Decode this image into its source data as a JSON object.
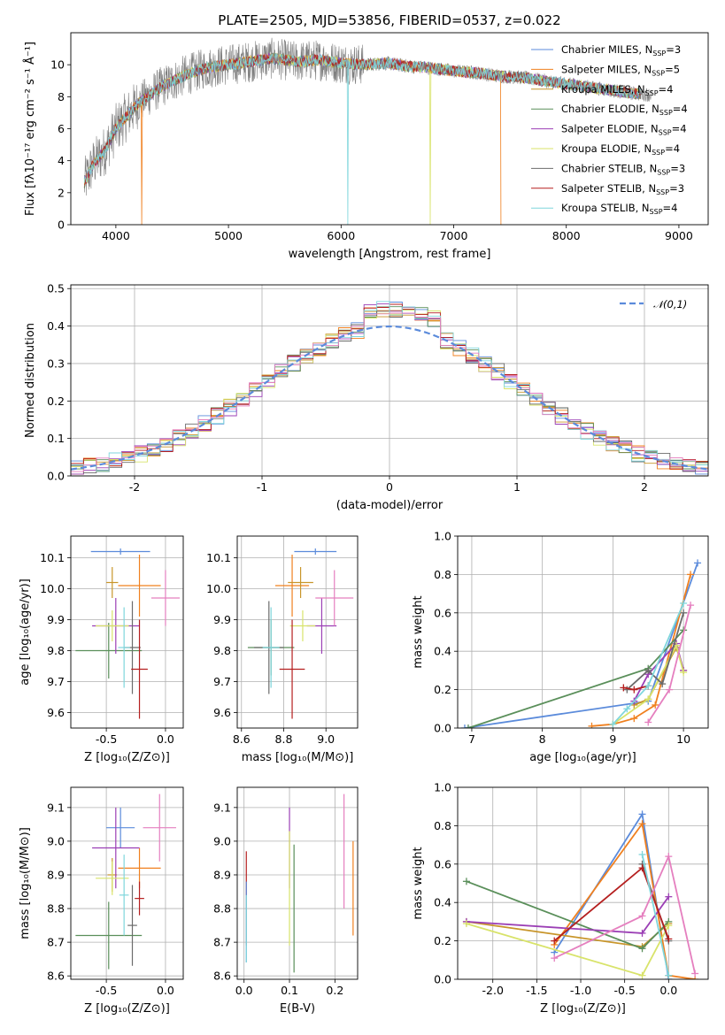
{
  "figure": {
    "title": "PLATE=2505, MJD=53856, FIBERID=0537, z=0.022"
  },
  "colors": {
    "series": [
      "#5b8bdb",
      "#f0801f",
      "#c8952a",
      "#5a8f5a",
      "#9b3fb5",
      "#d8e36a",
      "#6b6b6b",
      "#b51f1f",
      "#7fd6dc"
    ],
    "extra": [
      "#e57fbf"
    ],
    "raw_spectrum": "#808080",
    "gauss": "#5b8bdb"
  },
  "chart_data": [
    {
      "id": "spectrum",
      "type": "line",
      "title": "PLATE=2505, MJD=53856, FIBERID=0537, z=0.022",
      "xlabel": "wavelength [Angstrom, rest frame]",
      "ylabel": "Flux [fλ10⁻¹⁷ erg cm⁻² s⁻¹ Å⁻¹]",
      "xlim": [
        3600,
        9260
      ],
      "ylim": [
        0,
        12
      ],
      "xticks": [
        4000,
        5000,
        6000,
        7000,
        8000,
        9000
      ],
      "yticks": [
        0,
        2,
        4,
        6,
        8,
        10
      ],
      "legend_position": "top-right",
      "legend": [
        "Chabrier MILES, N_SSP=3",
        "Salpeter MILES, N_SSP=5",
        "Kroupa MILES, N_SSP=4",
        "Chabrier ELODIE, N_SSP=4",
        "Salpeter ELODIE, N_SSP=4",
        "Kroupa ELODIE, N_SSP=4",
        "Chabrier STELIB, N_SSP=3",
        "Salpeter STELIB, N_SSP=3",
        "Kroupa STELIB, N_SSP=4"
      ],
      "continuum": {
        "x": [
          3720,
          3800,
          3900,
          4000,
          4100,
          4200,
          4400,
          4600,
          4800,
          5000,
          5200,
          5400,
          5600,
          5800,
          6000,
          6200,
          6400,
          6600,
          6800,
          7000,
          7200,
          7400,
          7600,
          7800,
          8000,
          8200,
          8400,
          8600,
          8800
        ],
        "y": [
          2.6,
          3.8,
          4.6,
          6.0,
          6.8,
          7.6,
          8.6,
          9.3,
          9.8,
          10.0,
          10.2,
          10.4,
          10.2,
          10.3,
          10.1,
          10.0,
          10.1,
          9.9,
          9.8,
          9.6,
          9.5,
          9.3,
          9.2,
          9.0,
          8.8,
          8.6,
          8.4,
          8.2,
          8.1
        ]
      },
      "data_range": [
        3720,
        8760
      ],
      "model_end_salpeter_miles": 7420,
      "model_dips": [
        4230,
        6060,
        6790
      ]
    },
    {
      "id": "residuals",
      "type": "histogram",
      "xlabel": "(data-model)/error",
      "ylabel": "Normed distribution",
      "xlim": [
        -2.5,
        2.5
      ],
      "ylim": [
        0,
        0.51
      ],
      "xticks": [
        -2,
        -1,
        0,
        1,
        2
      ],
      "yticks": [
        0.0,
        0.1,
        0.2,
        0.3,
        0.4,
        0.5
      ],
      "legend_position": "top-right",
      "legend": [
        "𝒩(0,1)"
      ],
      "bin_width": 0.1
    },
    {
      "id": "age_vs_Z",
      "type": "errorbar",
      "xlabel": "Z [log₁₀(Z/Z⊙)]",
      "ylabel": "age  [log₁₀(age/yr)]",
      "xlim": [
        -0.8,
        0.15
      ],
      "ylim": [
        9.55,
        10.17
      ],
      "xticks": [
        -0.5,
        0.0
      ],
      "yticks": [
        9.6,
        9.7,
        9.8,
        9.9,
        10.0,
        10.1
      ],
      "points": [
        {
          "x": -0.38,
          "y": 10.12,
          "xe": 0.25,
          "ye": 0.01,
          "c": 0
        },
        {
          "x": -0.22,
          "y": 10.01,
          "xe": 0.18,
          "ye": 0.1,
          "c": 1
        },
        {
          "x": -0.45,
          "y": 10.02,
          "xe": 0.05,
          "ye": 0.05,
          "c": 2
        },
        {
          "x": -0.48,
          "y": 9.8,
          "xe": 0.28,
          "ye": 0.09,
          "c": 3
        },
        {
          "x": -0.42,
          "y": 9.88,
          "xe": 0.2,
          "ye": 0.09,
          "c": 4
        },
        {
          "x": -0.45,
          "y": 9.88,
          "xe": 0.14,
          "ye": 0.05,
          "c": 5
        },
        {
          "x": -0.28,
          "y": 9.81,
          "xe": 0.07,
          "ye": 0.15,
          "c": 6
        },
        {
          "x": -0.22,
          "y": 9.74,
          "xe": 0.07,
          "ye": 0.16,
          "c": 7
        },
        {
          "x": -0.35,
          "y": 9.81,
          "xe": 0.05,
          "ye": 0.13,
          "c": 8
        },
        {
          "x": 0.0,
          "y": 9.97,
          "xe": 0.12,
          "ye": 0.09,
          "c": 9
        }
      ]
    },
    {
      "id": "age_vs_mass",
      "type": "errorbar",
      "xlabel": "mass [log₁₀(M/M⊙)]",
      "ylabel": "",
      "xlim": [
        8.58,
        9.15
      ],
      "ylim": [
        9.55,
        10.17
      ],
      "xticks": [
        8.6,
        8.8,
        9.0
      ],
      "yticks": [
        9.6,
        9.7,
        9.8,
        9.9,
        10.0,
        10.1
      ],
      "points": [
        {
          "x": 8.95,
          "y": 10.12,
          "xe": 0.1,
          "ye": 0.01,
          "c": 0
        },
        {
          "x": 8.84,
          "y": 10.01,
          "xe": 0.08,
          "ye": 0.1,
          "c": 1
        },
        {
          "x": 8.88,
          "y": 10.02,
          "xe": 0.06,
          "ye": 0.05,
          "c": 2
        },
        {
          "x": 8.74,
          "y": 9.81,
          "xe": 0.11,
          "ye": 0.09,
          "c": 3
        },
        {
          "x": 8.98,
          "y": 9.88,
          "xe": 0.07,
          "ye": 0.09,
          "c": 4
        },
        {
          "x": 8.89,
          "y": 9.88,
          "xe": 0.06,
          "ye": 0.05,
          "c": 5
        },
        {
          "x": 8.73,
          "y": 9.81,
          "xe": 0.07,
          "ye": 0.15,
          "c": 6
        },
        {
          "x": 8.84,
          "y": 9.74,
          "xe": 0.06,
          "ye": 0.16,
          "c": 7
        },
        {
          "x": 8.74,
          "y": 9.81,
          "xe": 0.04,
          "ye": 0.13,
          "c": 8
        },
        {
          "x": 9.04,
          "y": 9.97,
          "xe": 0.09,
          "ye": 0.09,
          "c": 9
        }
      ]
    },
    {
      "id": "weight_vs_age",
      "type": "line",
      "xlabel": "age  [log₁₀(age/yr)]",
      "ylabel": "mass weight",
      "xlim": [
        6.8,
        10.35
      ],
      "ylim": [
        0,
        1.0
      ],
      "xticks": [
        7,
        8,
        9,
        10
      ],
      "yticks": [
        0.0,
        0.2,
        0.4,
        0.6,
        0.8,
        1.0
      ],
      "series": [
        {
          "c": 0,
          "x": [
            6.9,
            9.5,
            10.2
          ],
          "y": [
            0.0,
            0.14,
            0.86
          ]
        },
        {
          "c": 1,
          "x": [
            8.7,
            9.0,
            9.3,
            9.6,
            10.1
          ],
          "y": [
            0.01,
            0.02,
            0.05,
            0.12,
            0.8
          ]
        },
        {
          "c": 2,
          "x": [
            9.3,
            9.5,
            9.9,
            10.0
          ],
          "y": [
            0.12,
            0.15,
            0.42,
            0.3
          ]
        },
        {
          "c": 3,
          "x": [
            6.95,
            9.5,
            10.0
          ],
          "y": [
            0.0,
            0.31,
            0.51
          ]
        },
        {
          "c": 4,
          "x": [
            9.3,
            9.5,
            9.9,
            10.0
          ],
          "y": [
            0.14,
            0.28,
            0.44,
            0.3
          ]
        },
        {
          "c": 5,
          "x": [
            9.0,
            9.5,
            9.9,
            10.0
          ],
          "y": [
            0.02,
            0.15,
            0.43,
            0.29
          ]
        },
        {
          "c": 6,
          "x": [
            9.2,
            9.5,
            9.7,
            10.0
          ],
          "y": [
            0.2,
            0.3,
            0.23,
            0.6
          ]
        },
        {
          "c": 7,
          "x": [
            9.15,
            9.3,
            9.5
          ],
          "y": [
            0.21,
            0.2,
            0.22
          ]
        },
        {
          "c": 8,
          "x": [
            9.0,
            9.2,
            9.5,
            10.0
          ],
          "y": [
            0.02,
            0.1,
            0.22,
            0.65
          ]
        },
        {
          "c": 9,
          "x": [
            9.5,
            9.8,
            10.1
          ],
          "y": [
            0.03,
            0.2,
            0.64
          ]
        }
      ]
    },
    {
      "id": "mass_vs_Z",
      "type": "errorbar",
      "xlabel": "Z [log₁₀(Z/Z⊙)]",
      "ylabel": "mass [log₁₀(M/M⊙)]",
      "xlim": [
        -0.8,
        0.15
      ],
      "ylim": [
        8.59,
        9.16
      ],
      "xticks": [
        -0.5,
        0.0
      ],
      "yticks": [
        8.6,
        8.7,
        8.8,
        8.9,
        9.0,
        9.1
      ],
      "points": [
        {
          "x": -0.38,
          "y": 9.04,
          "xe": 0.12,
          "ye": 0.06,
          "c": 0
        },
        {
          "x": -0.22,
          "y": 8.92,
          "xe": 0.18,
          "ye": 0.06,
          "c": 1
        },
        {
          "x": -0.45,
          "y": 8.9,
          "xe": 0.04,
          "ye": 0.05,
          "c": 2
        },
        {
          "x": -0.48,
          "y": 8.72,
          "xe": 0.28,
          "ye": 0.1,
          "c": 3
        },
        {
          "x": -0.42,
          "y": 8.98,
          "xe": 0.2,
          "ye": 0.12,
          "c": 4
        },
        {
          "x": -0.45,
          "y": 8.89,
          "xe": 0.14,
          "ye": 0.05,
          "c": 5
        },
        {
          "x": -0.28,
          "y": 8.75,
          "xe": 0.04,
          "ye": 0.12,
          "c": 6
        },
        {
          "x": -0.22,
          "y": 8.83,
          "xe": 0.04,
          "ye": 0.05,
          "c": 7
        },
        {
          "x": -0.35,
          "y": 8.84,
          "xe": 0.04,
          "ye": 0.12,
          "c": 8
        },
        {
          "x": -0.05,
          "y": 9.04,
          "xe": 0.14,
          "ye": 0.1,
          "c": 9
        }
      ]
    },
    {
      "id": "mass_vs_ebv",
      "type": "errorbar",
      "xlabel": "E(B-V)",
      "ylabel": "",
      "xlim": [
        -0.015,
        0.25
      ],
      "ylim": [
        8.59,
        9.16
      ],
      "xticks": [
        0.0,
        0.1,
        0.2
      ],
      "yticks": [
        8.6,
        8.7,
        8.8,
        8.9,
        9.0,
        9.1
      ],
      "points": [
        {
          "x": 0.24,
          "y": 8.86,
          "xe": 0.0,
          "ye": 0.14,
          "c": 1
        },
        {
          "x": 0.1,
          "y": 8.98,
          "xe": 0.0,
          "ye": 0.12,
          "c": 4
        },
        {
          "x": 0.1,
          "y": 8.86,
          "xe": 0.0,
          "ye": 0.17,
          "c": 5
        },
        {
          "x": 0.11,
          "y": 8.8,
          "xe": 0.0,
          "ye": 0.19,
          "c": 3
        },
        {
          "x": 0.005,
          "y": 8.83,
          "xe": 0.0,
          "ye": 0.14,
          "c": 7
        },
        {
          "x": 0.005,
          "y": 8.76,
          "xe": 0.0,
          "ye": 0.12,
          "c": 0
        },
        {
          "x": 0.005,
          "y": 8.74,
          "xe": 0.0,
          "ye": 0.1,
          "c": 8
        },
        {
          "x": 0.22,
          "y": 8.97,
          "xe": 0.0,
          "ye": 0.17,
          "c": 9
        }
      ]
    },
    {
      "id": "weight_vs_Z",
      "type": "line",
      "xlabel": "Z [log₁₀(Z/Z⊙)]",
      "ylabel": "mass weight",
      "xlim": [
        -2.4,
        0.45
      ],
      "ylim": [
        0,
        1.0
      ],
      "xticks": [
        -2.0,
        -1.5,
        -1.0,
        -0.5,
        0.0
      ],
      "yticks": [
        0.0,
        0.2,
        0.4,
        0.6,
        0.8,
        1.0
      ],
      "series": [
        {
          "c": 0,
          "x": [
            -1.3,
            -0.3,
            0.0
          ],
          "y": [
            0.14,
            0.86,
            0.0
          ]
        },
        {
          "c": 1,
          "x": [
            -1.3,
            -0.3,
            0.0,
            0.3
          ],
          "y": [
            0.18,
            0.81,
            0.02,
            0.0
          ]
        },
        {
          "c": 2,
          "x": [
            -2.3,
            -0.3,
            0.0
          ],
          "y": [
            0.3,
            0.17,
            0.29
          ]
        },
        {
          "c": 3,
          "x": [
            -2.3,
            -0.3,
            0.0
          ],
          "y": [
            0.51,
            0.16,
            0.3
          ]
        },
        {
          "c": 4,
          "x": [
            -2.3,
            -0.3,
            0.0
          ],
          "y": [
            0.3,
            0.24,
            0.43
          ]
        },
        {
          "c": 5,
          "x": [
            -2.3,
            -0.3,
            0.0
          ],
          "y": [
            0.29,
            0.02,
            0.28
          ]
        },
        {
          "c": 6,
          "x": [
            -0.3,
            0.0
          ],
          "y": [
            0.6,
            0.2
          ]
        },
        {
          "c": 7,
          "x": [
            -1.3,
            -0.3,
            0.0
          ],
          "y": [
            0.2,
            0.58,
            0.21
          ]
        },
        {
          "c": 8,
          "x": [
            -0.3,
            0.0
          ],
          "y": [
            0.65,
            0.02
          ]
        },
        {
          "c": 9,
          "x": [
            -1.3,
            -0.3,
            0.0,
            0.3
          ],
          "y": [
            0.11,
            0.33,
            0.64,
            0.03
          ]
        }
      ]
    }
  ]
}
